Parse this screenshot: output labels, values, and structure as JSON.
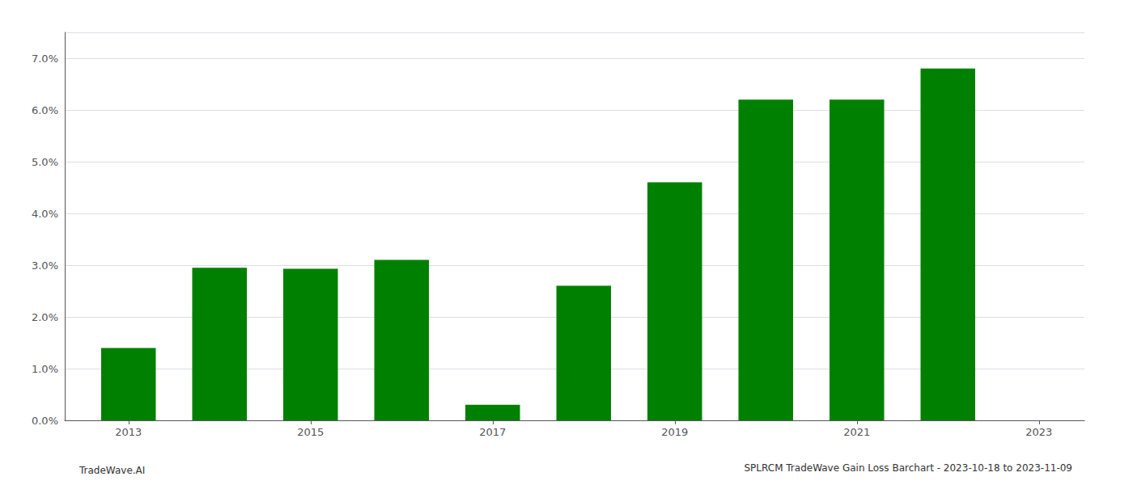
{
  "chart_data": {
    "type": "bar",
    "title": "SPLRCM TradeWave Gain Loss Barchart - 2023-10-18 to 2023-11-09",
    "annotations": [
      "TradeWave.AI"
    ],
    "x": [
      2013,
      2014,
      2015,
      2016,
      2017,
      2018,
      2019,
      2020,
      2021,
      2022
    ],
    "values": [
      0.014,
      0.0295,
      0.0293,
      0.031,
      0.003,
      0.026,
      0.046,
      0.062,
      0.062,
      0.068
    ],
    "color": "#008000",
    "xlim": [
      2012.3,
      2023.5
    ],
    "xticks": [
      2013,
      2015,
      2017,
      2019,
      2021,
      2023
    ],
    "ylim": [
      0,
      0.075
    ],
    "yticks": [
      {
        "value": 0.0,
        "label": "0.0%"
      },
      {
        "value": 0.01,
        "label": "1.0%"
      },
      {
        "value": 0.02,
        "label": "2.0%"
      },
      {
        "value": 0.03,
        "label": "3.0%"
      },
      {
        "value": 0.04,
        "label": "4.0%"
      },
      {
        "value": 0.05,
        "label": "5.0%"
      },
      {
        "value": 0.06,
        "label": "6.0%"
      },
      {
        "value": 0.07,
        "label": "7.0%"
      }
    ],
    "grid": true
  }
}
